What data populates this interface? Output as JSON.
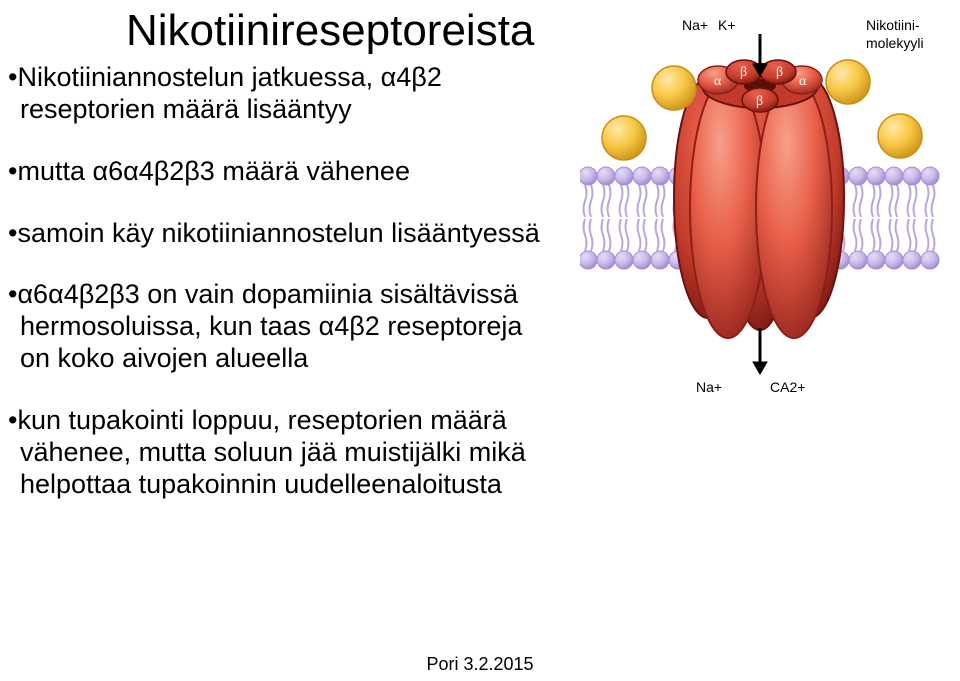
{
  "title": "Nikotiinireseptoreista",
  "bullets": {
    "b1a": "•Nikotiiniannostelun jatkuessa, α4β2",
    "b1b": "reseptorien määrä lisääntyy",
    "b2": "•mutta α6α4β2β3 määrä vähenee",
    "b3": "•samoin käy nikotiiniannostelun lisääntyessä",
    "b4a": "•α6α4β2β3 on vain dopamiinia sisältävissä",
    "b4b": "hermosoluissa, kun taas α4β2 reseptoreja",
    "b4c": "on koko aivojen alueella",
    "b5a": "•kun tupakointi loppuu, reseptorien määrä",
    "b5b": "vähenee, mutta soluun jää muistijälki mikä",
    "b5c": "helpottaa tupakoinnin uudelleenaloitusta"
  },
  "footer": "Pori 3.2.2015",
  "figure": {
    "labels": {
      "na": "Na+",
      "k": "K+",
      "nikotiini1": "Nikotiini-",
      "nikotiini2": "molekyyli",
      "bottom_na": "Na+",
      "bottom_ca": "CA2+"
    },
    "greek": {
      "alpha": "α",
      "beta": "β"
    },
    "colors": {
      "ball_yellow": "#f9c846",
      "ball_yellow_hi": "#ffe9a8",
      "ball_shadow": "#d19a1f",
      "receptor_light": "#f7a08a",
      "receptor_mid": "#e9604a",
      "receptor_dark": "#c23a2a",
      "receptor_deep": "#8e1f18",
      "membrane_head": "#c9b8e8",
      "membrane_head_dark": "#a58fd4",
      "membrane_tail": "#b9a6dd",
      "arrow": "#000000",
      "bg": "#ffffff"
    }
  }
}
